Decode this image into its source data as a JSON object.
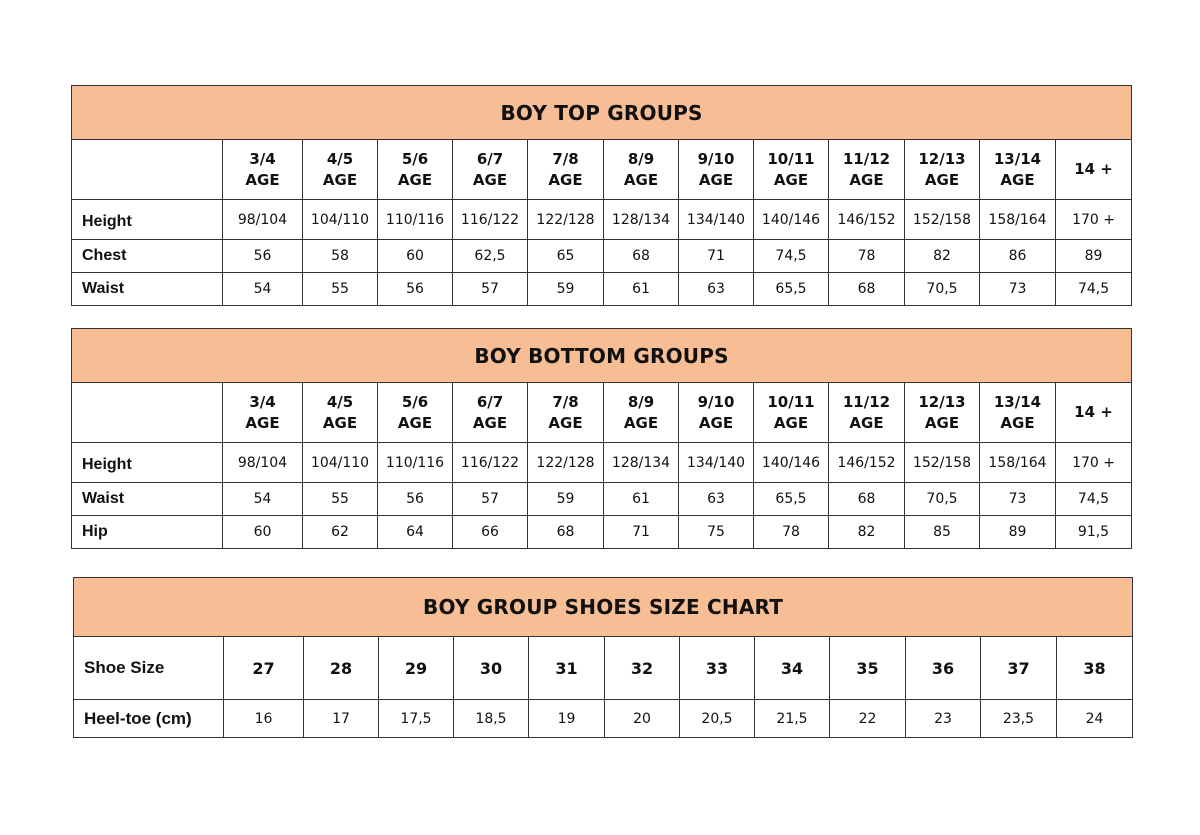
{
  "header_color": "#F7BE95",
  "top": {
    "title": "BOY TOP GROUPS",
    "columns": [
      [
        "3/4",
        "AGE"
      ],
      [
        "4/5",
        "AGE"
      ],
      [
        "5/6",
        "AGE"
      ],
      [
        "6/7",
        "AGE"
      ],
      [
        "7/8",
        "AGE"
      ],
      [
        "8/9",
        "AGE"
      ],
      [
        "9/10",
        "AGE"
      ],
      [
        "10/11",
        "AGE"
      ],
      [
        "11/12",
        "AGE"
      ],
      [
        "12/13",
        "AGE"
      ],
      [
        "13/14",
        "AGE"
      ],
      [
        "14 +",
        ""
      ]
    ],
    "rows": [
      {
        "label": "Height",
        "values": [
          "98/104",
          "104/110",
          "110/116",
          "116/122",
          "122/128",
          "128/134",
          "134/140",
          "140/146",
          "146/152",
          "152/158",
          "158/164",
          "170 +"
        ]
      },
      {
        "label": "Chest",
        "values": [
          "56",
          "58",
          "60",
          "62,5",
          "65",
          "68",
          "71",
          "74,5",
          "78",
          "82",
          "86",
          "89"
        ]
      },
      {
        "label": "Waist",
        "values": [
          "54",
          "55",
          "56",
          "57",
          "59",
          "61",
          "63",
          "65,5",
          "68",
          "70,5",
          "73",
          "74,5"
        ]
      }
    ]
  },
  "bottom": {
    "title": "BOY BOTTOM GROUPS",
    "columns": [
      [
        "3/4",
        "AGE"
      ],
      [
        "4/5",
        "AGE"
      ],
      [
        "5/6",
        "AGE"
      ],
      [
        "6/7",
        "AGE"
      ],
      [
        "7/8",
        "AGE"
      ],
      [
        "8/9",
        "AGE"
      ],
      [
        "9/10",
        "AGE"
      ],
      [
        "10/11",
        "AGE"
      ],
      [
        "11/12",
        "AGE"
      ],
      [
        "12/13",
        "AGE"
      ],
      [
        "13/14",
        "AGE"
      ],
      [
        "14 +",
        ""
      ]
    ],
    "rows": [
      {
        "label": "Height",
        "values": [
          "98/104",
          "104/110",
          "110/116",
          "116/122",
          "122/128",
          "128/134",
          "134/140",
          "140/146",
          "146/152",
          "152/158",
          "158/164",
          "170 +"
        ]
      },
      {
        "label": "Waist",
        "values": [
          "54",
          "55",
          "56",
          "57",
          "59",
          "61",
          "63",
          "65,5",
          "68",
          "70,5",
          "73",
          "74,5"
        ]
      },
      {
        "label": "Hip",
        "values": [
          "60",
          "62",
          "64",
          "66",
          "68",
          "71",
          "75",
          "78",
          "82",
          "85",
          "89",
          "91,5"
        ]
      }
    ]
  },
  "shoes": {
    "title": "BOY GROUP SHOES SIZE CHART",
    "size_label": "Shoe Size",
    "sizes": [
      "27",
      "28",
      "29",
      "30",
      "31",
      "32",
      "33",
      "34",
      "35",
      "36",
      "37",
      "38"
    ],
    "heel_label": "Heel-toe (cm)",
    "heel_toe": [
      "16",
      "17",
      "17,5",
      "18,5",
      "19",
      "20",
      "20,5",
      "21,5",
      "22",
      "23",
      "23,5",
      "24"
    ]
  }
}
